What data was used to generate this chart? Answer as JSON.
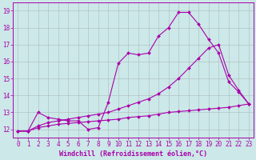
{
  "xlabel": "Windchill (Refroidissement éolien,°C)",
  "bg_color": "#cce8e8",
  "line_color": "#aa00aa",
  "xlim": [
    -0.5,
    23.5
  ],
  "ylim": [
    11.5,
    19.5
  ],
  "xticks": [
    0,
    1,
    2,
    3,
    4,
    5,
    6,
    7,
    8,
    9,
    10,
    11,
    12,
    13,
    14,
    15,
    16,
    17,
    18,
    19,
    20,
    21,
    22,
    23
  ],
  "yticks": [
    12,
    13,
    14,
    15,
    16,
    17,
    18,
    19
  ],
  "line1_x": [
    0,
    1,
    2,
    3,
    4,
    5,
    6,
    7,
    8,
    9,
    10,
    11,
    12,
    13,
    14,
    15,
    16,
    17,
    18,
    19,
    20,
    21,
    22,
    23
  ],
  "line1_y": [
    11.9,
    11.9,
    13.0,
    12.7,
    12.6,
    12.5,
    12.5,
    12.0,
    12.1,
    13.6,
    15.9,
    16.5,
    16.4,
    16.5,
    17.5,
    18.0,
    18.9,
    18.9,
    18.2,
    17.3,
    16.5,
    14.8,
    14.2,
    13.5
  ],
  "line2_x": [
    0,
    1,
    2,
    3,
    4,
    5,
    6,
    7,
    8,
    9,
    10,
    11,
    12,
    13,
    14,
    15,
    16,
    17,
    18,
    19,
    20,
    21,
    22,
    23
  ],
  "line2_y": [
    11.9,
    11.9,
    12.2,
    12.4,
    12.5,
    12.6,
    12.7,
    12.8,
    12.9,
    13.0,
    13.2,
    13.4,
    13.6,
    13.8,
    14.1,
    14.5,
    15.0,
    15.6,
    16.2,
    16.8,
    17.0,
    15.2,
    14.3,
    13.5
  ],
  "line3_x": [
    0,
    1,
    2,
    3,
    4,
    5,
    6,
    7,
    8,
    9,
    10,
    11,
    12,
    13,
    14,
    15,
    16,
    17,
    18,
    19,
    20,
    21,
    22,
    23
  ],
  "line3_y": [
    11.9,
    11.9,
    12.1,
    12.2,
    12.3,
    12.35,
    12.4,
    12.45,
    12.5,
    12.55,
    12.6,
    12.7,
    12.75,
    12.8,
    12.9,
    13.0,
    13.05,
    13.1,
    13.15,
    13.2,
    13.25,
    13.3,
    13.4,
    13.5
  ],
  "grid_color": "#aabbbb",
  "marker": "D",
  "markersize": 2.0,
  "linewidth": 0.8,
  "xlabel_fontsize": 6,
  "tick_fontsize": 5.5
}
